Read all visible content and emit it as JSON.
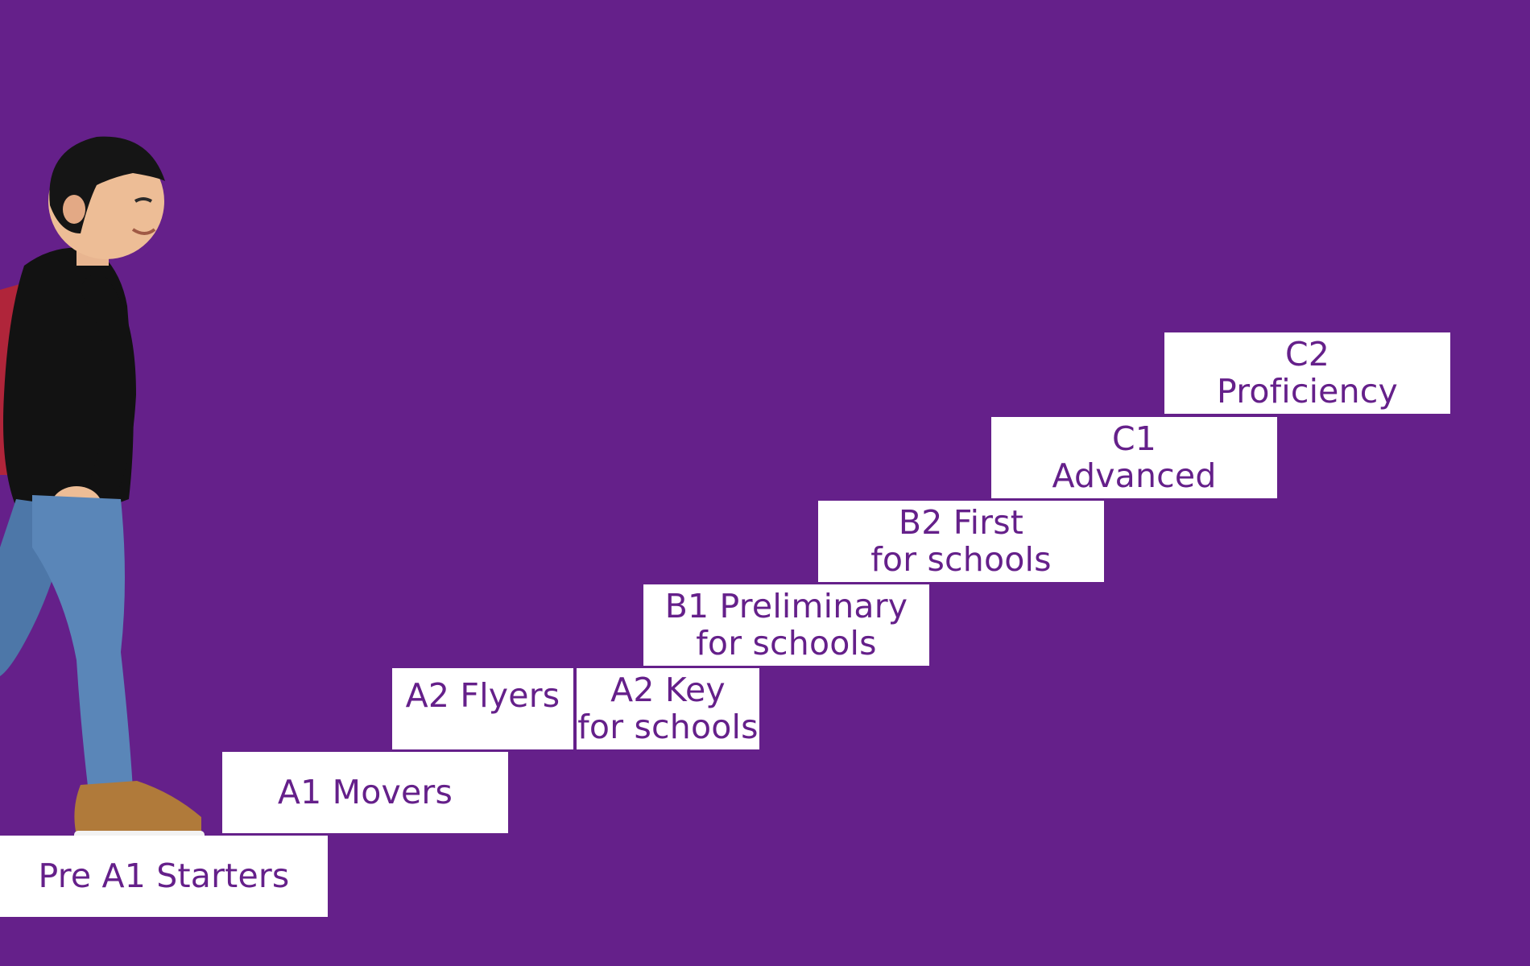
{
  "colors": {
    "background": "#65208a",
    "step_fill": "#ffffff",
    "step_text": "#65208a"
  },
  "steps": [
    {
      "lines": [
        "Pre A1 Starters"
      ]
    },
    {
      "lines": [
        "A1 Movers"
      ]
    },
    {
      "lines": [
        "A2 Flyers"
      ]
    },
    {
      "lines": [
        "A2 Key",
        "for schools"
      ]
    },
    {
      "lines": [
        "B1 Preliminary",
        "for schools"
      ]
    },
    {
      "lines": [
        "B2 First",
        "for schools"
      ]
    },
    {
      "lines": [
        "C1",
        "Advanced"
      ]
    },
    {
      "lines": [
        "C2",
        "Proficiency"
      ]
    }
  ]
}
